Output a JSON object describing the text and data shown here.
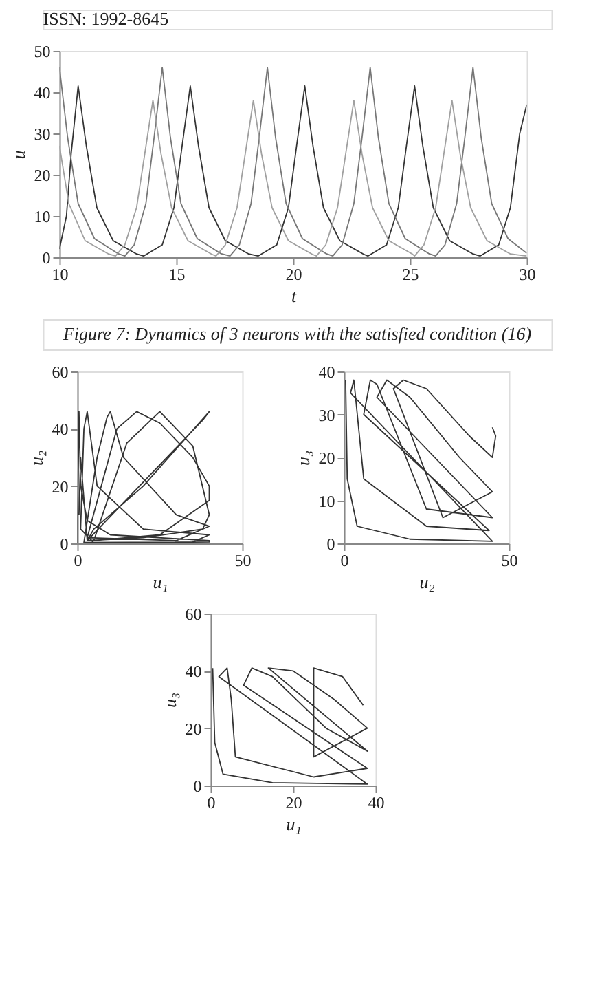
{
  "chart_data": [
    {
      "type": "line",
      "xlabel": "t",
      "ylabel": "u",
      "xlim": [
        10,
        30
      ],
      "ylim": [
        0,
        50
      ],
      "xticks": [
        10,
        15,
        20,
        25,
        30
      ],
      "yticks": [
        0,
        10,
        20,
        30,
        40,
        50
      ],
      "grid": false,
      "annotations": [
        "ISSN: 1992-8645",
        "Figure 7: Dynamics of 3 neurons with the satisfied condition (16)"
      ],
      "series": [
        {
          "color": "#333333",
          "x": [
            10,
            10.3,
            10.5,
            10.8,
            11.15,
            11.6,
            12.3,
            13.3,
            13.6,
            14.4,
            14.9,
            15.25,
            15.6,
            15.95,
            16.4,
            17.1,
            18.1,
            18.5,
            19.3,
            19.8,
            20.15,
            20.5,
            20.85,
            21.3,
            22,
            23,
            23.2,
            24,
            24.5,
            24.85,
            25.2,
            25.55,
            26,
            26.7,
            27.7,
            28,
            28.8,
            29.3,
            29.7,
            30
          ],
          "values": [
            2,
            10,
            25,
            41.5,
            27,
            12,
            4,
            0.8,
            0.3,
            3,
            12,
            27,
            41.5,
            27,
            12,
            4,
            0.8,
            0.3,
            3,
            12,
            27,
            41.5,
            27,
            12,
            4,
            0.8,
            0.3,
            3,
            12,
            27,
            41.5,
            27,
            12,
            4,
            0.8,
            0.3,
            3,
            12,
            30,
            37
          ]
        },
        {
          "color": "#777777",
          "x": [
            10,
            10.35,
            10.8,
            11.5,
            12.5,
            12.8,
            13.2,
            13.7,
            14.05,
            14.4,
            14.75,
            15.2,
            15.9,
            16.9,
            17.3,
            17.7,
            18.2,
            18.55,
            18.9,
            19.25,
            19.7,
            20.4,
            21.4,
            21.7,
            22.1,
            22.6,
            22.95,
            23.3,
            23.65,
            24.1,
            24.8,
            25.8,
            26.1,
            26.5,
            27,
            27.35,
            27.7,
            28.05,
            28.5,
            29.2,
            30
          ],
          "values": [
            46,
            29,
            13,
            4.5,
            0.9,
            0.3,
            3,
            13,
            29,
            46,
            29,
            13,
            4.5,
            0.9,
            0.3,
            3,
            13,
            29,
            46,
            29,
            13,
            4.5,
            0.9,
            0.3,
            3,
            13,
            29,
            46,
            29,
            13,
            4.5,
            0.9,
            0.3,
            3,
            13,
            29,
            46,
            29,
            13,
            4.5,
            1
          ]
        },
        {
          "color": "#a0a0a0",
          "x": [
            10,
            10.4,
            11.1,
            12.1,
            12.4,
            12.8,
            13.3,
            13.65,
            14,
            14.35,
            14.8,
            15.5,
            16.5,
            16.7,
            17.1,
            17.6,
            17.95,
            18.3,
            18.65,
            19.1,
            19.8,
            20.8,
            21,
            21.4,
            21.9,
            22.25,
            22.6,
            22.95,
            23.4,
            24.1,
            25.1,
            25.2,
            25.6,
            26.1,
            26.45,
            26.8,
            27.15,
            27.6,
            28.3,
            29.3,
            30
          ],
          "values": [
            27,
            13,
            4,
            0.8,
            0.3,
            3,
            12,
            25,
            38,
            25,
            12,
            4,
            0.8,
            0.3,
            3,
            12,
            25,
            38,
            25,
            12,
            4,
            0.8,
            0.3,
            3,
            12,
            25,
            38,
            25,
            12,
            4,
            0.8,
            0.3,
            3,
            12,
            25,
            38,
            25,
            12,
            4,
            0.8,
            0.3
          ]
        }
      ]
    },
    {
      "type": "line",
      "xlabel": "u₁",
      "ylabel": "u₂",
      "xlim": [
        0,
        50
      ],
      "ylim": [
        0,
        60
      ],
      "xticks": [
        0,
        50
      ],
      "yticks": [
        0,
        20,
        40,
        60
      ],
      "grid": false,
      "series": [
        {
          "color": "#333333",
          "x": [
            0,
            0.5,
            1,
            3,
            10,
            40,
            40,
            5,
            1,
            2,
            3,
            6,
            20,
            40,
            35,
            2,
            6,
            9,
            10,
            14,
            30,
            40,
            30,
            3,
            12,
            18,
            25,
            35,
            40,
            40,
            25,
            5,
            15,
            25,
            35,
            40,
            38,
            20,
            3,
            5,
            20,
            40,
            38,
            3,
            1,
            0.5
          ],
          "values": [
            0,
            46,
            20,
            8,
            3,
            1,
            0.5,
            0.2,
            5,
            40,
            46,
            20,
            5,
            3,
            0.5,
            0.3,
            30,
            44,
            46,
            30,
            10,
            6,
            1,
            2,
            40,
            46,
            42,
            30,
            20,
            15,
            3,
            1,
            35,
            46,
            34,
            10,
            5,
            2,
            1,
            5,
            20,
            46,
            43,
            1,
            30,
            10
          ]
        }
      ]
    },
    {
      "type": "line",
      "xlabel": "u₂",
      "ylabel": "u₃",
      "xlim": [
        0,
        50
      ],
      "ylim": [
        0,
        40
      ],
      "xticks": [
        0,
        50
      ],
      "yticks": [
        0,
        10,
        20,
        30,
        40
      ],
      "grid": false,
      "series": [
        {
          "color": "#333333",
          "x": [
            0.5,
            1,
            4,
            20,
            45,
            2,
            3,
            6,
            25,
            44,
            6,
            8,
            10,
            25,
            45,
            10,
            13,
            20,
            35,
            45,
            30,
            15,
            18,
            25,
            38,
            45,
            46,
            45
          ],
          "values": [
            38,
            15,
            4,
            1,
            0.5,
            35,
            38,
            15,
            4,
            3,
            30,
            38,
            37,
            8,
            6,
            34,
            38,
            34,
            20,
            12,
            6,
            36,
            38,
            36,
            25,
            20,
            25,
            27
          ]
        }
      ]
    },
    {
      "type": "line",
      "xlabel": "u₁",
      "ylabel": "u₃",
      "xlim": [
        0,
        40
      ],
      "ylim": [
        0,
        60
      ],
      "xticks": [
        0,
        20,
        40
      ],
      "yticks": [
        0,
        20,
        40,
        60
      ],
      "grid": false,
      "series": [
        {
          "color": "#333333",
          "x": [
            0.5,
            1,
            3,
            15,
            38,
            2,
            4,
            5,
            6,
            25,
            38,
            8,
            10,
            15,
            28,
            38,
            14,
            20,
            30,
            38,
            25,
            25,
            32,
            37
          ],
          "values": [
            41,
            15,
            4,
            1,
            0.5,
            38,
            41,
            30,
            10,
            3,
            6,
            35,
            41,
            38,
            20,
            12,
            41,
            40,
            30,
            20,
            10,
            41,
            38,
            28
          ]
        }
      ]
    }
  ]
}
